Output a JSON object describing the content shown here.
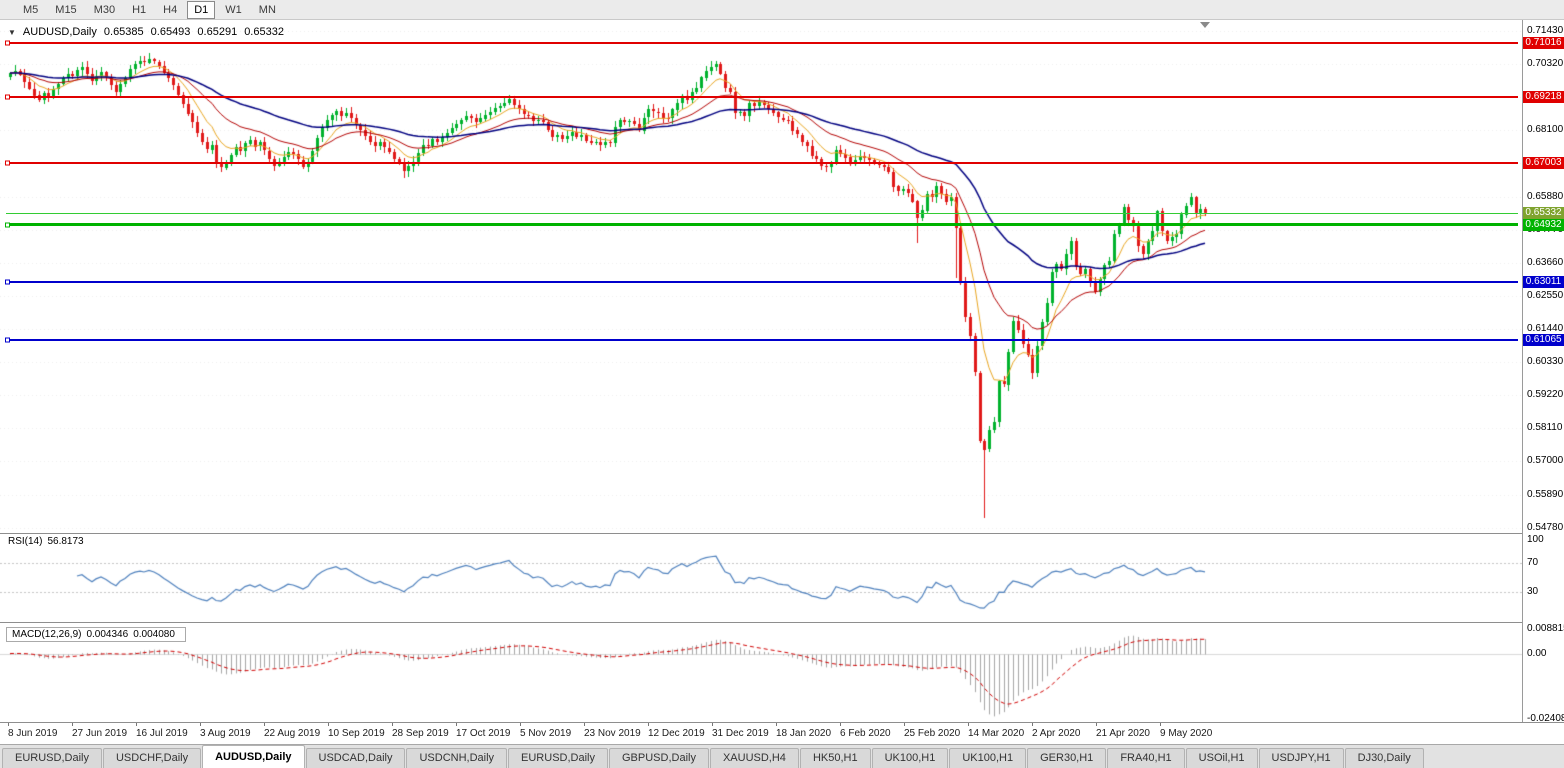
{
  "toolbar": {
    "timeframes": [
      {
        "label": "M5"
      },
      {
        "label": "M15"
      },
      {
        "label": "M30"
      },
      {
        "label": "H1"
      },
      {
        "label": "H4"
      },
      {
        "label": "D1"
      },
      {
        "label": "W1"
      },
      {
        "label": "MN"
      }
    ],
    "active_timeframe": "D1"
  },
  "icons": {
    "dropdown_arrow": "▼"
  },
  "chart": {
    "symbol_label": "AUDUSD,Daily",
    "ohlc": {
      "open": "0.65385",
      "high": "0.65493",
      "low": "0.65291",
      "close": "0.65332"
    },
    "price_axis": {
      "ticks": [
        "0.71430",
        "0.70320",
        "0.69210",
        "0.68100",
        "0.66990",
        "0.65880",
        "0.64770",
        "0.63660",
        "0.62550",
        "0.61440",
        "0.60330",
        "0.59220",
        "0.58110",
        "0.57000",
        "0.55890",
        "0.54780"
      ]
    },
    "levels": [
      {
        "price": 0.71016,
        "label": "0.71016",
        "color": "#E00000",
        "width": 2,
        "type": "resistance"
      },
      {
        "price": 0.69218,
        "label": "0.69218",
        "color": "#E00000",
        "width": 2,
        "type": "resistance"
      },
      {
        "price": 0.67003,
        "label": "0.67003",
        "color": "#E00000",
        "width": 2,
        "type": "resistance"
      },
      {
        "price": 0.64932,
        "label": "0.64932",
        "color": "#00B300",
        "width": 3,
        "type": "support"
      },
      {
        "price": 0.63011,
        "label": "0.63011",
        "color": "#0000CC",
        "width": 2,
        "type": "support"
      },
      {
        "price": 0.61065,
        "label": "0.61065",
        "color": "#0000CC",
        "width": 2,
        "type": "support"
      }
    ],
    "bid": {
      "value": 0.65332,
      "label": "0.65332",
      "line_color": "#33CC33",
      "badge_color": "#7FA32E"
    }
  },
  "chart_data": {
    "type": "candlestick",
    "symbol": "AUDUSD",
    "timeframe": "Daily",
    "title": "AUDUSD,Daily 0.65385 0.65493 0.65291 0.65332",
    "y_range": [
      0.546,
      0.718
    ],
    "x_labels": [
      "8 Jun 2019",
      "27 Jun 2019",
      "16 Jul 2019",
      "3 Aug 2019",
      "22 Aug 2019",
      "10 Sep 2019",
      "28 Sep 2019",
      "17 Oct 2019",
      "5 Nov 2019",
      "23 Nov 2019",
      "12 Dec 2019",
      "31 Dec 2019",
      "18 Jan 2020",
      "6 Feb 2020",
      "25 Feb 2020",
      "14 Mar 2020",
      "2 Apr 2020",
      "21 Apr 2020",
      "9 May 2020"
    ],
    "closes": [
      0.7002,
      0.701,
      0.6998,
      0.6972,
      0.695,
      0.6928,
      0.691,
      0.6935,
      0.6922,
      0.6948,
      0.6965,
      0.6985,
      0.7,
      0.6992,
      0.7012,
      0.7021,
      0.6998,
      0.6975,
      0.6992,
      0.7005,
      0.6988,
      0.6962,
      0.694,
      0.6966,
      0.6985,
      0.7015,
      0.7032,
      0.7041,
      0.7036,
      0.7048,
      0.704,
      0.7025,
      0.7002,
      0.6985,
      0.696,
      0.693,
      0.69,
      0.6868,
      0.6838,
      0.68,
      0.677,
      0.6745,
      0.6762,
      0.67,
      0.6685,
      0.6702,
      0.6728,
      0.6755,
      0.674,
      0.6766,
      0.6778,
      0.6755,
      0.677,
      0.6742,
      0.6715,
      0.6692,
      0.6705,
      0.6722,
      0.6738,
      0.673,
      0.6712,
      0.6689,
      0.6705,
      0.6742,
      0.6785,
      0.682,
      0.6846,
      0.6862,
      0.6875,
      0.6858,
      0.6868,
      0.685,
      0.6828,
      0.6812,
      0.6792,
      0.6772,
      0.6758,
      0.677,
      0.6752,
      0.6738,
      0.6715,
      0.67,
      0.6672,
      0.669,
      0.6705,
      0.6735,
      0.6762,
      0.6758,
      0.6782,
      0.6772,
      0.6788,
      0.6802,
      0.6818,
      0.6832,
      0.6845,
      0.6858,
      0.6852,
      0.6838,
      0.685,
      0.6862,
      0.6872,
      0.6885,
      0.6892,
      0.6902,
      0.6915,
      0.6895,
      0.688,
      0.6862,
      0.6858,
      0.684,
      0.6845,
      0.6838,
      0.6812,
      0.6788,
      0.6795,
      0.6782,
      0.6792,
      0.6805,
      0.6788,
      0.6795,
      0.6775,
      0.6768,
      0.6772,
      0.6762,
      0.6772,
      0.6768,
      0.6822,
      0.6845,
      0.6838,
      0.684,
      0.683,
      0.681,
      0.6852,
      0.688,
      0.6872,
      0.6868,
      0.6852,
      0.685,
      0.688,
      0.6902,
      0.6925,
      0.6912,
      0.6938,
      0.6952,
      0.6988,
      0.701,
      0.7022,
      0.7032,
      0.7,
      0.6952,
      0.6938,
      0.6868,
      0.6872,
      0.6858,
      0.6902,
      0.6892,
      0.6905,
      0.6895,
      0.6882,
      0.687,
      0.6852,
      0.6845,
      0.6842,
      0.681,
      0.6795,
      0.6772,
      0.6758,
      0.6725,
      0.6715,
      0.6692,
      0.6688,
      0.6702,
      0.6745,
      0.6732,
      0.672,
      0.6698,
      0.6712,
      0.6725,
      0.6718,
      0.6712,
      0.6702,
      0.6695,
      0.6688,
      0.6672,
      0.6622,
      0.6605,
      0.6612,
      0.6598,
      0.6572,
      0.6515,
      0.6542,
      0.6598,
      0.6588,
      0.6625,
      0.6598,
      0.6572,
      0.6585,
      0.6482,
      0.6298,
      0.6185,
      0.612,
      0.5998,
      0.577,
      0.5741,
      0.5805,
      0.5832,
      0.5968,
      0.5958,
      0.6068,
      0.6172,
      0.6142,
      0.6095,
      0.6058,
      0.5998,
      0.6088,
      0.6168,
      0.6232,
      0.6335,
      0.6362,
      0.6345,
      0.6395,
      0.6438,
      0.6352,
      0.6328,
      0.6345,
      0.6302,
      0.6268,
      0.6312,
      0.6358,
      0.6372,
      0.6462,
      0.6495,
      0.6552,
      0.6508,
      0.6488,
      0.6422,
      0.6395,
      0.6438,
      0.6472,
      0.6538,
      0.6472,
      0.6438,
      0.6452,
      0.6462,
      0.6528,
      0.6558,
      0.6585,
      0.6532,
      0.6545,
      0.65332
    ],
    "wick_overrides": {
      "189": {
        "low": 0.6434
      },
      "197": {
        "low": 0.6313
      },
      "203": {
        "low": 0.551
      },
      "246": {
        "high": 0.66
      }
    },
    "moving_averages": [
      {
        "period": 8,
        "color": "#E8A520",
        "width": 1
      },
      {
        "period": 21,
        "color": "#B30000",
        "width": 1
      },
      {
        "period": 50,
        "color": "#000080",
        "width": 1.5
      }
    ],
    "up_color": "#00B22D",
    "down_color": "#E01919"
  },
  "indicators": {
    "rsi": {
      "label": "RSI(14)",
      "value": "56.8173",
      "period": 14,
      "axis_labels": [
        "100",
        "70",
        "30"
      ],
      "line_levels": [
        70,
        30
      ],
      "color": "#4F81BD"
    },
    "macd": {
      "label": "MACD(12,26,9)",
      "value_main": "0.004346",
      "value_signal": "0.004080",
      "fast": 12,
      "slow": 26,
      "signal": 9,
      "axis_labels": [
        "0.008815",
        "0.00",
        "-0.024082"
      ],
      "hist_color": "#A6A6A6",
      "signal_color": "#D00000"
    }
  },
  "tabs": {
    "items": [
      {
        "label": "EURUSD,Daily"
      },
      {
        "label": "USDCHF,Daily"
      },
      {
        "label": "AUDUSD,Daily"
      },
      {
        "label": "USDCAD,Daily"
      },
      {
        "label": "USDCNH,Daily"
      },
      {
        "label": "EURUSD,Daily"
      },
      {
        "label": "GBPUSD,Daily"
      },
      {
        "label": "XAUUSD,H4"
      },
      {
        "label": "HK50,H1"
      },
      {
        "label": "UK100,H1"
      },
      {
        "label": "UK100,H1"
      },
      {
        "label": "GER30,H1"
      },
      {
        "label": "FRA40,H1"
      },
      {
        "label": "USOil,H1"
      },
      {
        "label": "USDJPY,H1"
      },
      {
        "label": "DJ30,Daily"
      }
    ],
    "active_index": 2
  }
}
